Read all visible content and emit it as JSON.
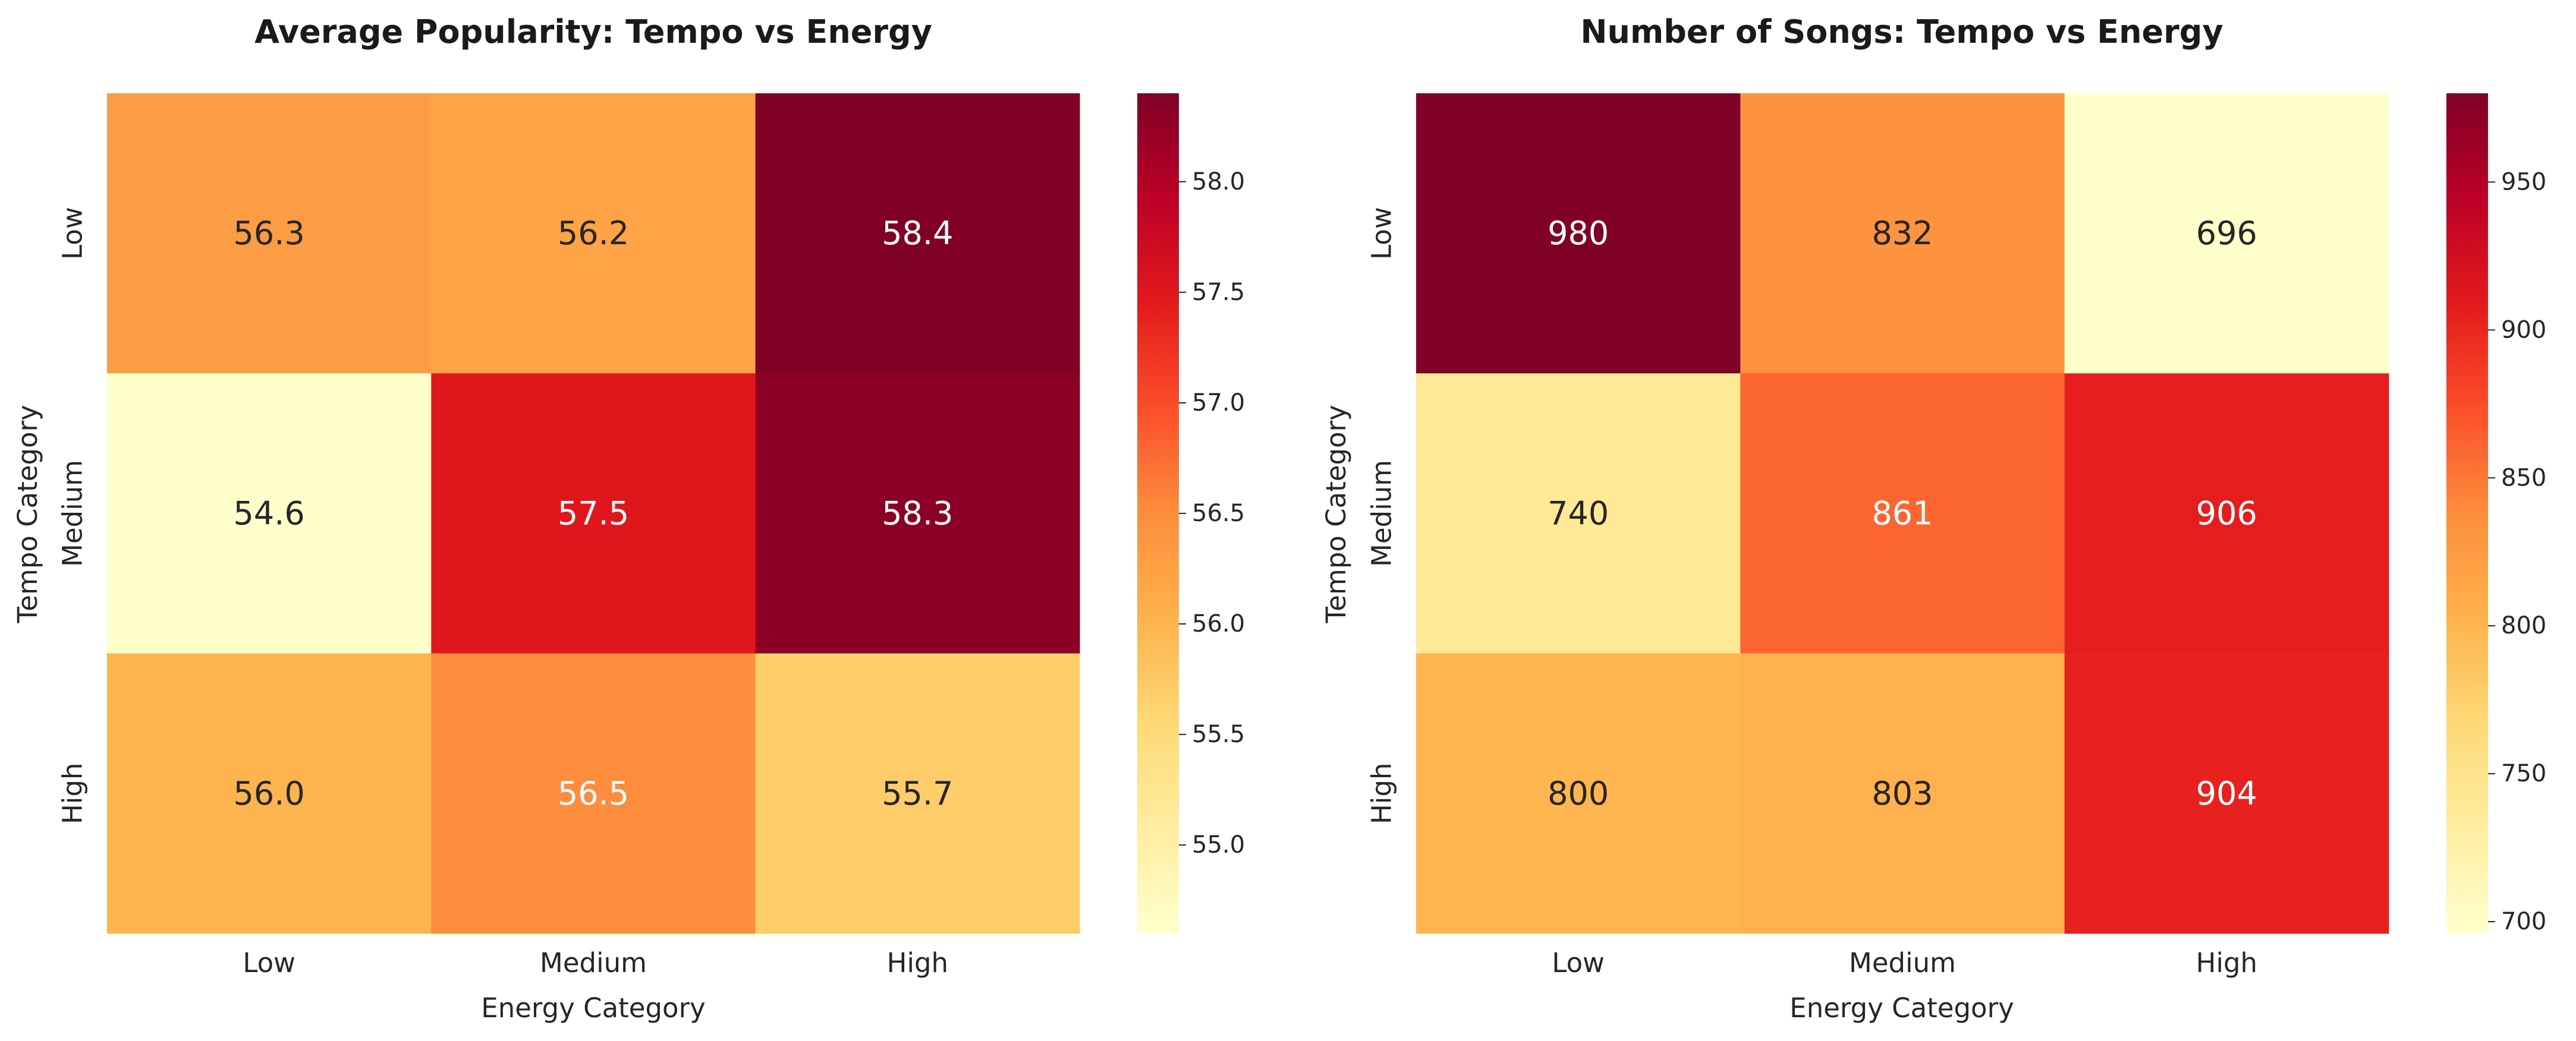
{
  "chart_data": [
    {
      "type": "heatmap",
      "title": "Average Popularity: Tempo vs Energy",
      "xlabel": "Energy Category",
      "ylabel": "Tempo Category",
      "x_categories": [
        "Low",
        "Medium",
        "High"
      ],
      "y_categories": [
        "Low",
        "Medium",
        "High"
      ],
      "values": [
        [
          56.3,
          56.2,
          58.4
        ],
        [
          54.6,
          57.5,
          58.3
        ],
        [
          56.0,
          56.5,
          55.7
        ]
      ],
      "labels": [
        [
          "56.3",
          "56.2",
          "58.4"
        ],
        [
          "54.6",
          "57.5",
          "58.3"
        ],
        [
          "56.0",
          "56.5",
          "55.7"
        ]
      ],
      "colormap": "YlOrRd",
      "vrange": [
        54.6,
        58.4
      ],
      "colorbar_ticks": [
        55.0,
        55.5,
        56.0,
        56.5,
        57.0,
        57.5,
        58.0
      ],
      "colorbar_labels": [
        "55.0",
        "55.5",
        "56.0",
        "56.5",
        "57.0",
        "57.5",
        "58.0"
      ],
      "grid": false
    },
    {
      "type": "heatmap",
      "title": "Number of Songs: Tempo vs Energy",
      "xlabel": "Energy Category",
      "ylabel": "Tempo Category",
      "x_categories": [
        "Low",
        "Medium",
        "High"
      ],
      "y_categories": [
        "Low",
        "Medium",
        "High"
      ],
      "values": [
        [
          980,
          832,
          696
        ],
        [
          740,
          861,
          906
        ],
        [
          800,
          803,
          904
        ]
      ],
      "labels": [
        [
          "980",
          "832",
          "696"
        ],
        [
          "740",
          "861",
          "906"
        ],
        [
          "800",
          "803",
          "904"
        ]
      ],
      "colormap": "YlOrRd",
      "vrange": [
        696,
        980
      ],
      "colorbar_ticks": [
        700,
        750,
        800,
        850,
        900,
        950
      ],
      "colorbar_labels": [
        "700",
        "750",
        "800",
        "850",
        "900",
        "950"
      ],
      "grid": false
    }
  ],
  "colors": {
    "colormap_stops": [
      "#ffffcc",
      "#ffeda0",
      "#fed976",
      "#feb24c",
      "#fd8d3c",
      "#fc4e2a",
      "#e31a1c",
      "#bd0026",
      "#800026"
    ],
    "text_dark": "#262626",
    "text_light": "#ffffff"
  }
}
